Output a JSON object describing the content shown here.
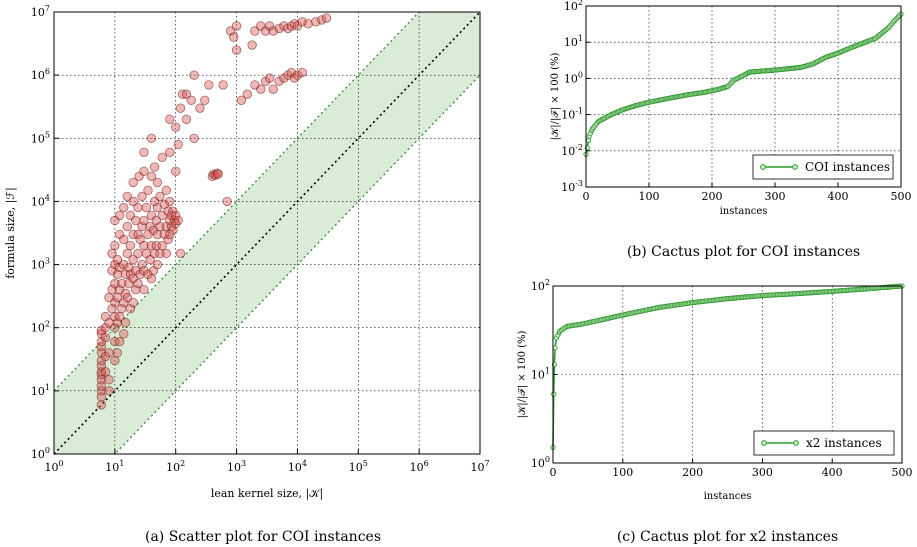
{
  "chart_data": [
    {
      "type": "scatter",
      "caption": "(a) Scatter plot for COI instances",
      "xlabel": "lean kernel size, |𝒦|",
      "ylabel": "formula size, |ℱ|",
      "xscale": "log",
      "yscale": "log",
      "xlim": [
        1,
        10000000
      ],
      "ylim": [
        1,
        10000000
      ],
      "x_tick_labels": [
        "10^0",
        "10^1",
        "10^2",
        "10^3",
        "10^4",
        "10^5",
        "10^6",
        "10^7"
      ],
      "y_tick_labels": [
        "10^0",
        "10^1",
        "10^2",
        "10^3",
        "10^4",
        "10^5",
        "10^6",
        "10^7"
      ],
      "grid": true,
      "reference_lines": [
        {
          "label": "y = x",
          "factor": 1
        },
        {
          "label": "y = 10x",
          "factor": 10
        },
        {
          "label": "y = x/10",
          "factor": 0.1
        }
      ],
      "shaded_band": "between y = x/10 and y = 10x",
      "colors": {
        "points": "#d9534f",
        "points_edge": "#6b1a1a",
        "band": "#d9ecd6",
        "band_edge": "#3a8a3a"
      },
      "points": [
        [
          6,
          6
        ],
        [
          6,
          8
        ],
        [
          6,
          10
        ],
        [
          6,
          12
        ],
        [
          6,
          15
        ],
        [
          6,
          18
        ],
        [
          6,
          20
        ],
        [
          6,
          25
        ],
        [
          6,
          30
        ],
        [
          6,
          40
        ],
        [
          6,
          50
        ],
        [
          6,
          60
        ],
        [
          6,
          80
        ],
        [
          6,
          90
        ],
        [
          7,
          20
        ],
        [
          7,
          35
        ],
        [
          7,
          70
        ],
        [
          7,
          100
        ],
        [
          7,
          150
        ],
        [
          8,
          10
        ],
        [
          8,
          15
        ],
        [
          8,
          40
        ],
        [
          8,
          120
        ],
        [
          8,
          300
        ],
        [
          9,
          200
        ],
        [
          9,
          400
        ],
        [
          9,
          800
        ],
        [
          9,
          1500
        ],
        [
          10,
          30
        ],
        [
          10,
          60
        ],
        [
          10,
          100
        ],
        [
          10,
          150
        ],
        [
          10,
          250
        ],
        [
          10,
          500
        ],
        [
          10,
          1000
        ],
        [
          10,
          2000
        ],
        [
          10,
          5000
        ],
        [
          11,
          40
        ],
        [
          11,
          120
        ],
        [
          11,
          300
        ],
        [
          11,
          700
        ],
        [
          11,
          1200
        ],
        [
          12,
          60
        ],
        [
          12,
          150
        ],
        [
          12,
          400
        ],
        [
          12,
          900
        ],
        [
          12,
          3000
        ],
        [
          12,
          6000
        ],
        [
          13,
          200
        ],
        [
          13,
          500
        ],
        [
          14,
          80
        ],
        [
          14,
          250
        ],
        [
          14,
          1000
        ],
        [
          14,
          2500
        ],
        [
          14,
          8000
        ],
        [
          15,
          120
        ],
        [
          15,
          350
        ],
        [
          15,
          700
        ],
        [
          16,
          300
        ],
        [
          16,
          1500
        ],
        [
          16,
          4000
        ],
        [
          16,
          12000
        ],
        [
          17,
          500
        ],
        [
          17,
          900
        ],
        [
          18,
          200
        ],
        [
          18,
          700
        ],
        [
          18,
          2000
        ],
        [
          18,
          6000
        ],
        [
          20,
          250
        ],
        [
          20,
          600
        ],
        [
          20,
          1200
        ],
        [
          20,
          3000
        ],
        [
          20,
          10000
        ],
        [
          20,
          20000
        ],
        [
          22,
          400
        ],
        [
          22,
          800
        ],
        [
          22,
          5000
        ],
        [
          24,
          500
        ],
        [
          24,
          1500
        ],
        [
          24,
          3000
        ],
        [
          24,
          8000
        ],
        [
          25,
          25000
        ],
        [
          26,
          700
        ],
        [
          26,
          2500
        ],
        [
          28,
          1000
        ],
        [
          28,
          4000
        ],
        [
          28,
          12000
        ],
        [
          30,
          400
        ],
        [
          30,
          800
        ],
        [
          30,
          2000
        ],
        [
          30,
          5000
        ],
        [
          30,
          30000
        ],
        [
          30,
          60000
        ],
        [
          33,
          1500
        ],
        [
          33,
          8000
        ],
        [
          35,
          700
        ],
        [
          35,
          3000
        ],
        [
          35,
          15000
        ],
        [
          38,
          1200
        ],
        [
          38,
          4000
        ],
        [
          40,
          600
        ],
        [
          40,
          2000
        ],
        [
          40,
          6000
        ],
        [
          40,
          25000
        ],
        [
          40,
          100000
        ],
        [
          43,
          800
        ],
        [
          43,
          3500
        ],
        [
          45,
          1500
        ],
        [
          45,
          10000
        ],
        [
          45,
          35000
        ],
        [
          48,
          2000
        ],
        [
          48,
          5000
        ],
        [
          50,
          1000
        ],
        [
          50,
          3000
        ],
        [
          50,
          8000
        ],
        [
          50,
          20000
        ],
        [
          55,
          1500
        ],
        [
          55,
          4000
        ],
        [
          55,
          12000
        ],
        [
          60,
          2000
        ],
        [
          60,
          6000
        ],
        [
          60,
          50000
        ],
        [
          65,
          3000
        ],
        [
          65,
          9000
        ],
        [
          70,
          1500
        ],
        [
          70,
          4000
        ],
        [
          70,
          15000
        ],
        [
          75,
          2500
        ],
        [
          75,
          7000
        ],
        [
          80,
          3000
        ],
        [
          80,
          5000
        ],
        [
          80,
          10000
        ],
        [
          80,
          60000
        ],
        [
          80,
          200000
        ],
        [
          85,
          4000
        ],
        [
          85,
          6000
        ],
        [
          90,
          3500
        ],
        [
          90,
          7000
        ],
        [
          95,
          5000
        ],
        [
          100,
          4500
        ],
        [
          100,
          6000
        ],
        [
          100,
          30000
        ],
        [
          100,
          150000
        ],
        [
          110,
          5000
        ],
        [
          110,
          80000
        ],
        [
          120,
          1500
        ],
        [
          120,
          300000
        ],
        [
          130,
          500000
        ],
        [
          150,
          200000
        ],
        [
          150,
          500000
        ],
        [
          180,
          400000
        ],
        [
          200,
          100000
        ],
        [
          200,
          1000000
        ],
        [
          250,
          300000
        ],
        [
          300,
          400000
        ],
        [
          350,
          700000
        ],
        [
          400,
          25000
        ],
        [
          420,
          27000
        ],
        [
          450,
          26000
        ],
        [
          480,
          28000
        ],
        [
          500,
          27000
        ],
        [
          600,
          700000
        ],
        [
          700,
          10000
        ],
        [
          800,
          5000000
        ],
        [
          900,
          4000000
        ],
        [
          1000,
          6000000
        ],
        [
          1000,
          2500000
        ],
        [
          1200,
          400000
        ],
        [
          1500,
          500000
        ],
        [
          1800,
          3000000
        ],
        [
          2000,
          700000
        ],
        [
          2000,
          5000000
        ],
        [
          2500,
          600000
        ],
        [
          2500,
          6000000
        ],
        [
          3000,
          800000
        ],
        [
          3000,
          5000000
        ],
        [
          3500,
          900000
        ],
        [
          3500,
          6000000
        ],
        [
          4000,
          600000
        ],
        [
          4000,
          5000000
        ],
        [
          5000,
          800000
        ],
        [
          5000,
          5500000
        ],
        [
          6000,
          900000
        ],
        [
          6000,
          6000000
        ],
        [
          7000,
          1000000
        ],
        [
          7000,
          5500000
        ],
        [
          8000,
          1100000
        ],
        [
          8000,
          6000000
        ],
        [
          9000,
          900000
        ],
        [
          9000,
          6500000
        ],
        [
          10000,
          1000000
        ],
        [
          10000,
          6000000
        ],
        [
          12000,
          1100000
        ],
        [
          12000,
          7000000
        ],
        [
          15000,
          6500000
        ],
        [
          20000,
          7000000
        ],
        [
          25000,
          7500000
        ],
        [
          30000,
          8000000
        ]
      ]
    },
    {
      "type": "line",
      "caption": "(b) Cactus plot for COI instances",
      "xlabel": "instances",
      "ylabel": "|𝒦|/|ℱ| × 100 (%)",
      "yscale": "log",
      "xlim": [
        0,
        500
      ],
      "ylim": [
        0.001,
        100
      ],
      "x_tick_labels": [
        "0",
        "100",
        "200",
        "300",
        "400",
        "500"
      ],
      "y_tick_labels": [
        "10^-3",
        "10^-2",
        "10^-1",
        "10^0",
        "10^1",
        "10^2"
      ],
      "grid": true,
      "legend": {
        "label": "COI instances",
        "position": "lower-right"
      },
      "color": "#2e9a2e",
      "series": [
        {
          "name": "COI instances",
          "x": [
            0,
            2,
            5,
            10,
            20,
            40,
            60,
            80,
            100,
            130,
            160,
            190,
            210,
            225,
            235,
            245,
            260,
            300,
            340,
            360,
            380,
            400,
            420,
            440,
            460,
            480,
            490,
            500
          ],
          "y": [
            0.008,
            0.012,
            0.025,
            0.04,
            0.065,
            0.1,
            0.14,
            0.18,
            0.22,
            0.28,
            0.35,
            0.42,
            0.5,
            0.6,
            0.9,
            1.1,
            1.5,
            1.7,
            2.0,
            2.5,
            3.8,
            5.0,
            7.0,
            9.5,
            13,
            25,
            40,
            60
          ]
        }
      ]
    },
    {
      "type": "line",
      "caption": "(c) Cactus plot for x2 instances",
      "xlabel": "instances",
      "ylabel": "|𝒦|/|ℱ| × 100 (%)",
      "yscale": "log",
      "xlim": [
        0,
        500
      ],
      "ylim": [
        1,
        100
      ],
      "x_tick_labels": [
        "0",
        "100",
        "200",
        "300",
        "400",
        "500"
      ],
      "y_tick_labels": [
        "10^0",
        "10^1",
        "10^2"
      ],
      "grid": true,
      "legend": {
        "label": "x2 instances",
        "position": "lower-right"
      },
      "color": "#2e9a2e",
      "series": [
        {
          "name": "x2 instances",
          "x": [
            0,
            1,
            2,
            3,
            5,
            10,
            20,
            40,
            60,
            100,
            150,
            200,
            250,
            300,
            350,
            400,
            450,
            500
          ],
          "y": [
            1.5,
            6,
            13,
            20,
            26,
            31,
            35,
            37,
            40,
            47,
            57,
            65,
            72,
            78,
            82,
            87,
            93,
            100
          ]
        }
      ]
    }
  ]
}
